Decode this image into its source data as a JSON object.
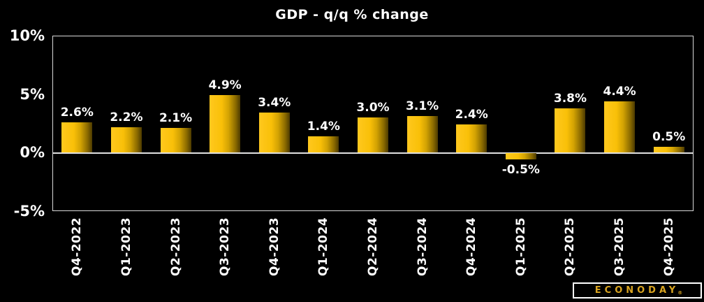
{
  "title": "GDP - q/q % change",
  "chart_data": {
    "type": "bar",
    "title": "GDP - q/q % change",
    "categories": [
      "Q4-2022",
      "Q1-2023",
      "Q2-2023",
      "Q3-2023",
      "Q4-2023",
      "Q1-2024",
      "Q2-2024",
      "Q3-2024",
      "Q4-2024",
      "Q1-2025",
      "Q2-2025",
      "Q3-2025",
      "Q4-2025"
    ],
    "values": [
      2.6,
      2.2,
      2.1,
      4.9,
      3.4,
      1.4,
      3.0,
      3.1,
      2.4,
      -0.5,
      3.8,
      4.4,
      0.5
    ],
    "value_labels": [
      "2.6%",
      "2.2%",
      "2.1%",
      "4.9%",
      "3.4%",
      "1.4%",
      "3.0%",
      "3.1%",
      "2.4%",
      "-0.5%",
      "3.8%",
      "4.4%",
      "0.5%"
    ],
    "xlabel": "",
    "ylabel": "",
    "ylim": [
      -5,
      10
    ],
    "yticks": [
      {
        "value": 10,
        "label": "10%"
      },
      {
        "value": 5,
        "label": "5%"
      },
      {
        "value": 0,
        "label": "0%"
      },
      {
        "value": -5,
        "label": "-5%"
      }
    ],
    "grid": "zero-line-only",
    "legend": "none",
    "bar_gradient": [
      "#ffc81e",
      "#4c3a00"
    ],
    "background_color": "#000000",
    "text_color": "#ffffff",
    "plot_border_color": "#d9d9d9",
    "zero_line_color": "#e0e0e0"
  },
  "branding": {
    "logo_text": "ECONODAY",
    "registered_mark": "®",
    "logo_color": "#d9a420"
  }
}
